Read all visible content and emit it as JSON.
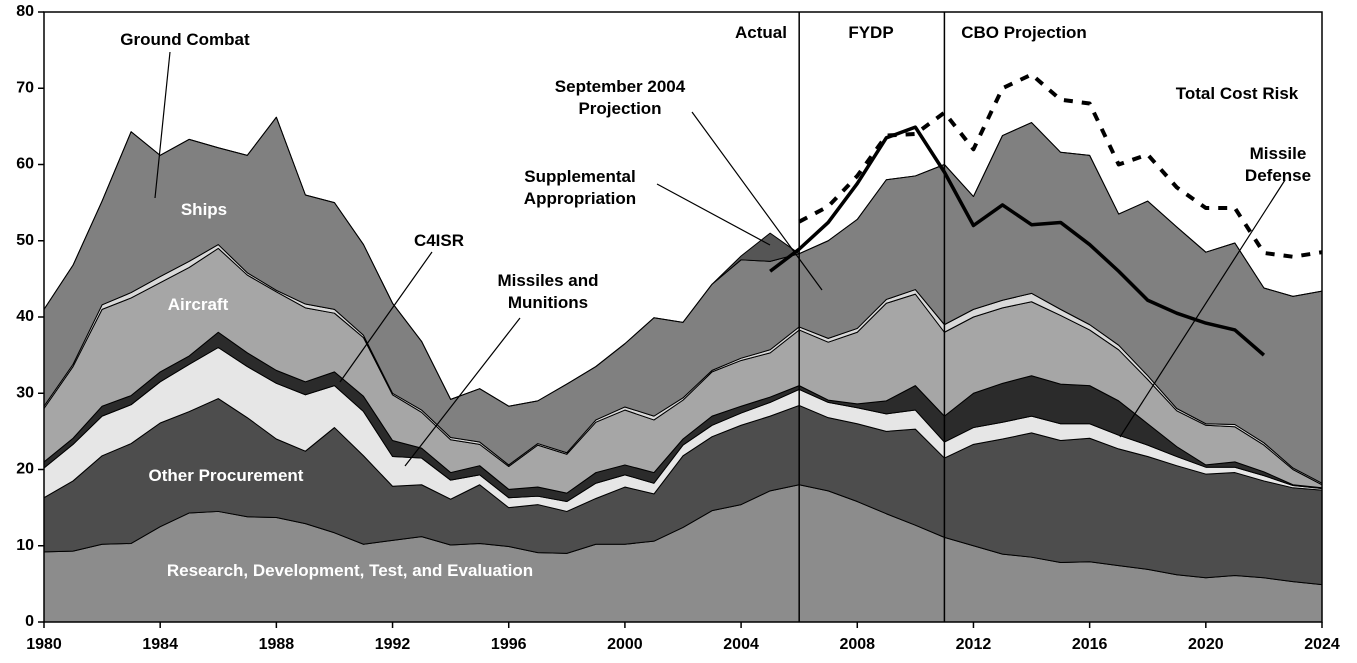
{
  "chart_data": {
    "type": "stacked-area",
    "x": [
      1980,
      1981,
      1982,
      1983,
      1984,
      1985,
      1986,
      1987,
      1988,
      1989,
      1990,
      1991,
      1992,
      1993,
      1994,
      1995,
      1996,
      1997,
      1998,
      1999,
      2000,
      2001,
      2002,
      2003,
      2004,
      2005,
      2006,
      2007,
      2008,
      2009,
      2010,
      2011,
      2012,
      2013,
      2014,
      2015,
      2016,
      2017,
      2018,
      2019,
      2020,
      2021,
      2022,
      2023,
      2024
    ],
    "xlim": [
      1980,
      2024
    ],
    "xticks": [
      1980,
      1984,
      1988,
      1992,
      1996,
      2000,
      2004,
      2008,
      2012,
      2016,
      2020,
      2024
    ],
    "ylim": [
      0,
      80
    ],
    "yticks": [
      0,
      10,
      20,
      30,
      40,
      50,
      60,
      70,
      80
    ],
    "series": [
      {
        "name": "Research, Development, Test, and Evaluation",
        "color": "#8c8c8c",
        "values": [
          9.2,
          9.3,
          10.2,
          10.3,
          12.5,
          14.3,
          14.5,
          13.8,
          13.7,
          12.9,
          11.7,
          10.2,
          10.7,
          11.2,
          10.1,
          10.3,
          9.9,
          9.1,
          9.0,
          10.2,
          10.2,
          10.6,
          12.4,
          14.6,
          15.4,
          17.2,
          18.0,
          17.2,
          15.8,
          14.2,
          12.7,
          11.1,
          10.0,
          8.9,
          8.5,
          7.8,
          7.9,
          7.4,
          6.9,
          6.2,
          5.8,
          6.1,
          5.8,
          5.3,
          4.9
        ]
      },
      {
        "name": "Other Procurement",
        "color": "#4d4d4d",
        "values": [
          7.1,
          9.2,
          11.6,
          13.1,
          13.6,
          13.3,
          14.8,
          13.0,
          10.3,
          9.5,
          13.8,
          11.6,
          7.1,
          6.8,
          6.0,
          7.7,
          5.1,
          6.3,
          5.5,
          6.0,
          7.5,
          6.2,
          9.4,
          9.7,
          10.4,
          9.8,
          10.4,
          9.6,
          10.2,
          10.8,
          12.6,
          10.4,
          13.3,
          15.1,
          16.3,
          16.0,
          16.2,
          15.3,
          14.8,
          14.3,
          13.6,
          13.5,
          12.7,
          12.3,
          12.4
        ]
      },
      {
        "name": "Missiles and Munitions",
        "color": "#e6e6e6",
        "values": [
          3.9,
          4.8,
          5.2,
          5.1,
          5.4,
          6.2,
          6.7,
          6.7,
          7.3,
          7.4,
          5.5,
          5.8,
          3.9,
          3.5,
          2.5,
          1.3,
          1.3,
          1.1,
          1.3,
          2.0,
          1.6,
          1.4,
          1.4,
          1.5,
          1.6,
          1.8,
          2.1,
          2.0,
          2.1,
          2.3,
          2.5,
          2.1,
          2.2,
          2.2,
          2.2,
          2.2,
          1.9,
          1.8,
          1.5,
          1.2,
          0.9,
          0.7,
          0.7,
          0.3,
          0.2
        ]
      },
      {
        "name": "C4ISR",
        "color": "#2b2b2b",
        "values": [
          0.8,
          0.8,
          1.3,
          1.2,
          1.3,
          1.1,
          2.0,
          1.8,
          1.7,
          1.7,
          1.8,
          2.0,
          2.1,
          1.3,
          1.0,
          1.2,
          1.1,
          1.2,
          1.1,
          1.4,
          1.3,
          1.4,
          0.8,
          1.2,
          0.9,
          0.7,
          0.5,
          0.3,
          0.5,
          1.7,
          3.2,
          3.4,
          4.5,
          5.1,
          5.3,
          5.2,
          5.0,
          4.5,
          2.8,
          1.3,
          0.3,
          0.7,
          0.5,
          0.1,
          0.1
        ]
      },
      {
        "name": "Aircraft",
        "color": "#a6a6a6",
        "values": [
          7.0,
          9.4,
          12.7,
          12.8,
          11.7,
          11.6,
          11.0,
          10.2,
          10.3,
          9.7,
          7.7,
          7.7,
          6.0,
          4.7,
          4.3,
          2.8,
          3.0,
          5.5,
          5.1,
          6.6,
          7.2,
          6.9,
          5.1,
          5.8,
          6.0,
          5.8,
          7.3,
          7.6,
          9.4,
          12.8,
          12.0,
          11.0,
          10.0,
          9.9,
          9.7,
          9.0,
          7.3,
          6.7,
          5.8,
          4.7,
          5.2,
          4.6,
          3.5,
          2.0,
          0.4
        ]
      },
      {
        "name": "Ground Combat",
        "color": "#d9d9d9",
        "values": [
          0.3,
          0.3,
          0.6,
          0.7,
          0.8,
          0.8,
          0.5,
          0.3,
          0.2,
          0.5,
          0.5,
          0.3,
          0.2,
          0.3,
          0.3,
          0.3,
          0.2,
          0.2,
          0.2,
          0.3,
          0.4,
          0.5,
          0.3,
          0.2,
          0.3,
          0.4,
          0.4,
          0.5,
          0.5,
          0.5,
          0.6,
          1.0,
          1.0,
          1.0,
          1.1,
          0.8,
          0.7,
          0.6,
          0.5,
          0.3,
          0.2,
          0.3,
          0.3,
          0.2,
          0.2
        ]
      },
      {
        "name": "Ships",
        "color": "#808080",
        "values": [
          12.7,
          13.0,
          13.6,
          21.1,
          15.9,
          16.0,
          12.7,
          15.4,
          22.7,
          14.3,
          14.0,
          11.9,
          11.8,
          9.0,
          5.0,
          7.0,
          7.7,
          5.6,
          9.0,
          7.0,
          8.3,
          12.9,
          9.9,
          11.3,
          12.9,
          11.6,
          9.6,
          12.8,
          14.3,
          15.7,
          14.9,
          21.0,
          14.8,
          21.6,
          22.4,
          20.6,
          22.2,
          17.2,
          22.9,
          23.8,
          22.5,
          23.8,
          20.3,
          22.5,
          25.2
        ]
      },
      {
        "name": "Supplemental Appropriation",
        "color": "#555555",
        "values": [
          0,
          0,
          0,
          0,
          0,
          0,
          0,
          0,
          0,
          0,
          0,
          0,
          0,
          0,
          0,
          0,
          0,
          0,
          0,
          0,
          0,
          0,
          0,
          0,
          0.5,
          3.7,
          0,
          0,
          0,
          0,
          0,
          0,
          0,
          0,
          0,
          0,
          0,
          0,
          0,
          0,
          0,
          0,
          0,
          0,
          0
        ]
      }
    ],
    "lines": [
      {
        "name": "September 2004 Projection",
        "color": "#000000",
        "style": "solid",
        "x": [
          2005,
          2006,
          2007,
          2008,
          2009,
          2010,
          2011,
          2012,
          2013,
          2014,
          2015,
          2016,
          2017,
          2018,
          2019,
          2020,
          2021,
          2022
        ],
        "values": [
          46.0,
          48.9,
          52.4,
          57.5,
          63.5,
          64.9,
          59.0,
          52.0,
          54.7,
          52.1,
          52.4,
          49.5,
          46.0,
          42.2,
          40.5,
          39.2,
          38.3,
          35.0
        ]
      },
      {
        "name": "Total Cost Risk",
        "color": "#000000",
        "style": "dotted",
        "x": [
          2006,
          2007,
          2008,
          2009,
          2010,
          2011,
          2012,
          2013,
          2014,
          2015,
          2016,
          2017,
          2018,
          2019,
          2020,
          2021,
          2022,
          2023,
          2024
        ],
        "values": [
          52.5,
          54.5,
          58.5,
          63.8,
          64.0,
          66.8,
          62.0,
          70.0,
          71.8,
          68.5,
          68.0,
          60.0,
          61.3,
          57.0,
          54.3,
          54.3,
          48.4,
          47.9,
          48.5
        ]
      }
    ],
    "dividers": [
      2006,
      2011
    ],
    "annotations": [
      "Actual",
      "FYDP",
      "CBO Projection",
      "Missile Defense"
    ]
  }
}
